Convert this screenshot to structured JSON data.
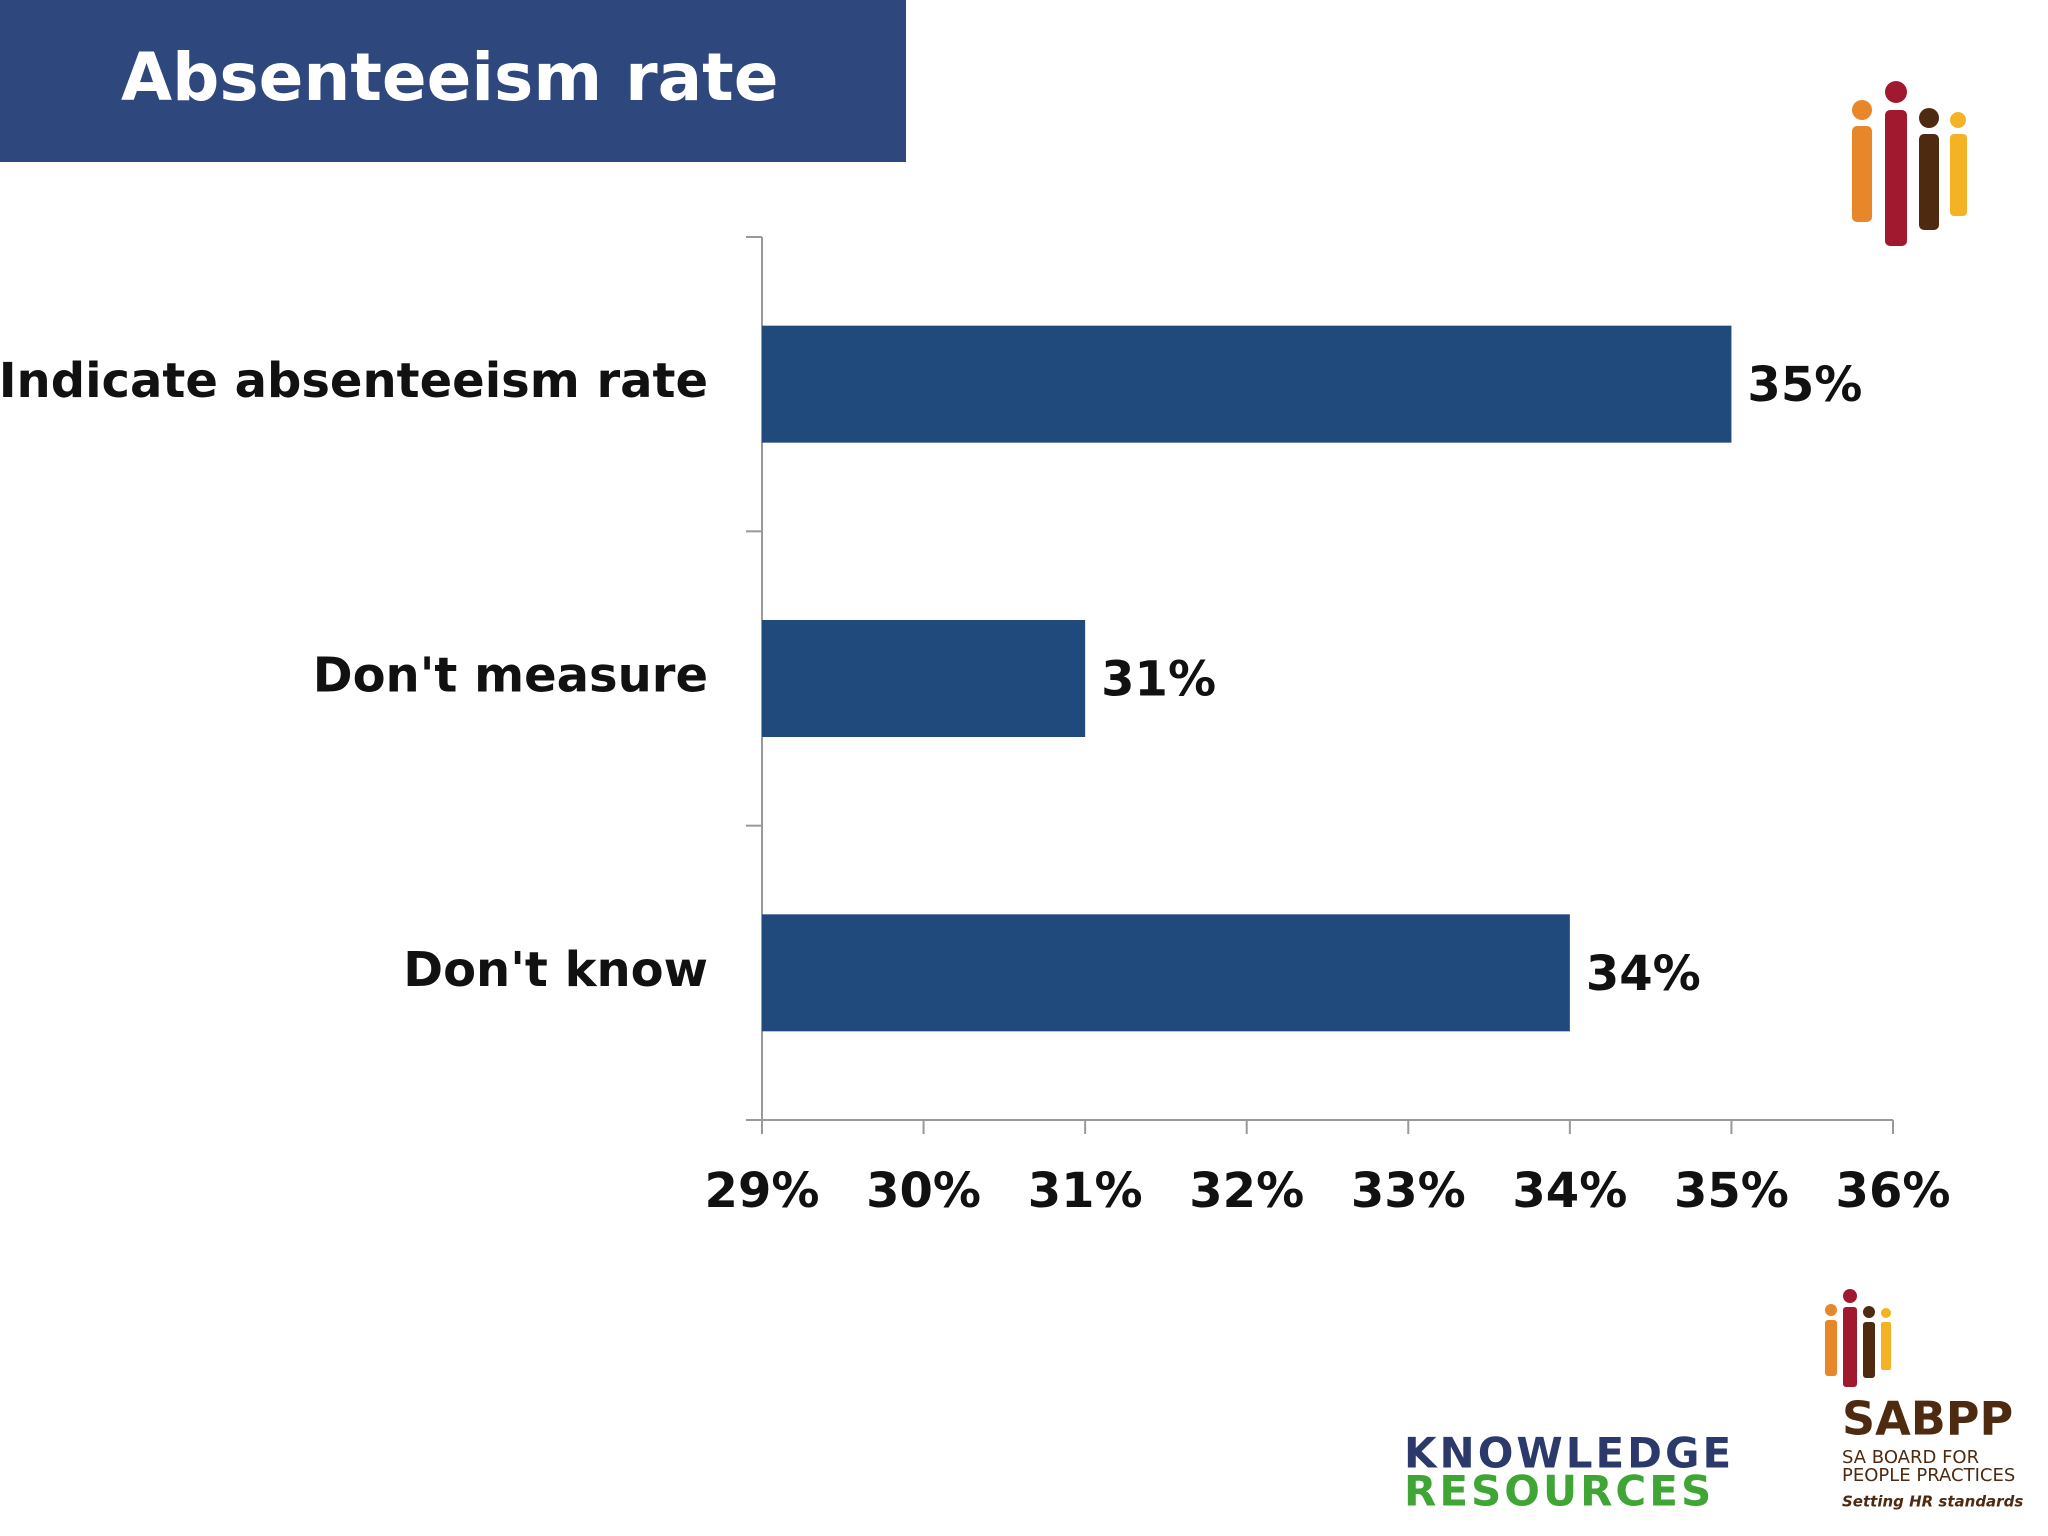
{
  "chart_data": {
    "type": "hbar",
    "title": "Absenteeism rate",
    "categories": [
      "Indicate absenteeism rate",
      "Don't measure",
      "Don't know"
    ],
    "values": [
      35,
      31,
      34
    ],
    "value_labels": [
      "35%",
      "31%",
      "34%"
    ],
    "color": "#214a7c",
    "xlim": [
      29,
      36
    ],
    "xticks": [
      {
        "value": 29,
        "label": "29%"
      },
      {
        "value": 30,
        "label": "30%"
      },
      {
        "value": 31,
        "label": "31%"
      },
      {
        "value": 32,
        "label": "32%"
      },
      {
        "value": 33,
        "label": "33%"
      },
      {
        "value": 34,
        "label": "34%"
      },
      {
        "value": 35,
        "label": "35%"
      },
      {
        "value": 36,
        "label": "36%"
      }
    ],
    "grid": false
  },
  "logos": {
    "knowledge": [
      "KNOWLEDGE",
      "RESOURCES"
    ],
    "sabpp": {
      "name": "SABPP",
      "lines": [
        "SA BOARD FOR",
        "PEOPLE PRACTICES"
      ],
      "tagline": "Setting HR standards"
    }
  }
}
